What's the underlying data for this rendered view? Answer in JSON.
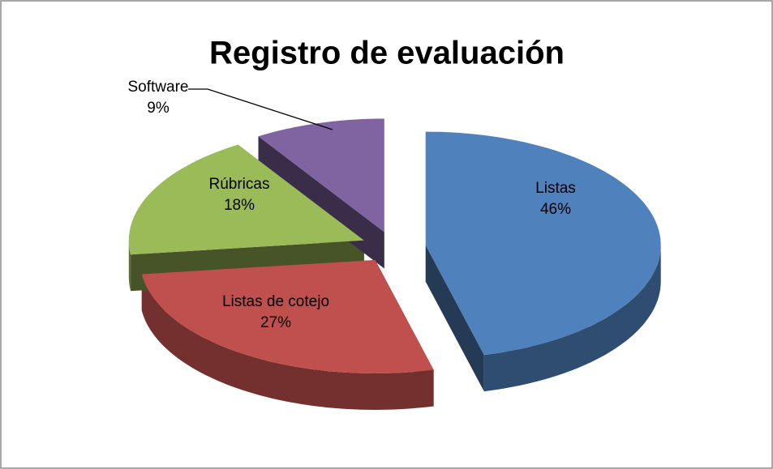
{
  "chart_data": {
    "type": "pie",
    "title": "Registro de evaluación",
    "categories": [
      "Listas",
      "Listas de cotejo",
      "Rúbricas",
      "Software"
    ],
    "values": [
      46,
      27,
      18,
      9
    ],
    "value_labels": [
      "46%",
      "27%",
      "18%",
      "9%"
    ],
    "colors": [
      "#4f81bd",
      "#c0504d",
      "#9bbb59",
      "#8064a2"
    ]
  }
}
